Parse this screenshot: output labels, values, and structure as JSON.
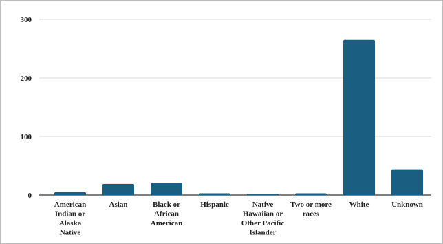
{
  "chart_data": {
    "type": "bar",
    "title": "",
    "xlabel": "",
    "ylabel": "",
    "ylim": [
      0,
      300
    ],
    "yticks": [
      0,
      100,
      200,
      300
    ],
    "grid": true,
    "legend": "none",
    "bar_color": "#1a5e82",
    "grid_color": "#d9d9d9",
    "categories": [
      "American Indian or Alaska Native",
      "Asian",
      "Black or African American",
      "Hispanic",
      "Native Hawaiian or Other Pacific Islander",
      "Two or more races",
      "White",
      "Unknown"
    ],
    "category_lines": [
      [
        "American",
        "Indian or",
        "Alaska",
        "Native"
      ],
      [
        "Asian"
      ],
      [
        "Black or",
        "African",
        "American"
      ],
      [
        "Hispanic"
      ],
      [
        "Native",
        "Hawaiian or",
        "Other Pacific",
        "Islander"
      ],
      [
        "Two or more",
        "races"
      ],
      [
        "White"
      ],
      [
        "Unknown"
      ]
    ],
    "values": [
      5,
      19,
      21,
      3,
      2,
      3,
      265,
      44
    ]
  }
}
